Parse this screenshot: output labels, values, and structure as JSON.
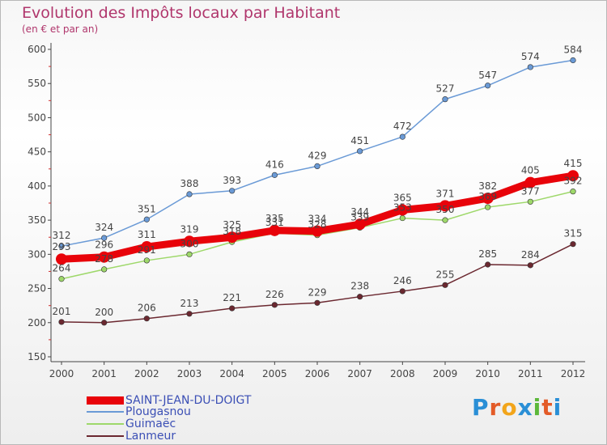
{
  "title": "Evolution des Impôts locaux par Habitant",
  "subtitle": "(en € et par an)",
  "logo": {
    "text": "Proxiti",
    "letters": [
      "P",
      "r",
      "o",
      "x",
      "i",
      "t",
      "i"
    ],
    "colors": [
      "#2a8fd6",
      "#e35b28",
      "#f2a51b",
      "#2a8fd6",
      "#5cb83a",
      "#e35b28",
      "#2a8fd6"
    ]
  },
  "chart_data": {
    "type": "line",
    "x": [
      "2000",
      "2001",
      "2002",
      "2003",
      "2004",
      "2005",
      "2006",
      "2007",
      "2008",
      "2009",
      "2010",
      "2011",
      "2012"
    ],
    "ylim": [
      150,
      600
    ],
    "yticks": [
      "150",
      "200",
      "250",
      "300",
      "350",
      "400",
      "450",
      "500",
      "550",
      "600"
    ],
    "grid": false,
    "legend_position": "bottom-left",
    "series": [
      {
        "name": "SAINT-JEAN-DU-DOIGT",
        "color": "#e8030a",
        "values": [
          293,
          296,
          311,
          319,
          325,
          335,
          334,
          344,
          365,
          371,
          382,
          405,
          415
        ],
        "labels": [
          "293",
          "296",
          "311",
          "319",
          "325",
          "335",
          "334",
          "344",
          "365",
          "371",
          "382",
          "405",
          "415"
        ]
      },
      {
        "name": "Plougasnou",
        "color": "#6a9ad6",
        "values": [
          312,
          324,
          351,
          388,
          393,
          416,
          429,
          451,
          472,
          527,
          547,
          574,
          584
        ],
        "labels": [
          "312",
          "324",
          "351",
          "388",
          "393",
          "416",
          "429",
          "451",
          "472",
          "527",
          "547",
          "574",
          "584"
        ]
      },
      {
        "name": "Guimaëc",
        "color": "#9ed86a",
        "values": [
          264,
          278,
          291,
          300,
          318,
          331,
          328,
          339,
          353,
          350,
          369,
          377,
          392
        ],
        "labels": [
          "264",
          "278",
          "291",
          "300",
          "318",
          "331",
          "328",
          "339",
          "353",
          "350",
          "369",
          "377",
          "392"
        ]
      },
      {
        "name": "Lanmeur",
        "color": "#6b2830",
        "values": [
          201,
          200,
          206,
          213,
          221,
          226,
          229,
          238,
          246,
          255,
          285,
          284,
          315
        ],
        "labels": [
          "201",
          "200",
          "206",
          "213",
          "221",
          "226",
          "229",
          "238",
          "246",
          "255",
          "285",
          "284",
          "315"
        ]
      }
    ]
  }
}
